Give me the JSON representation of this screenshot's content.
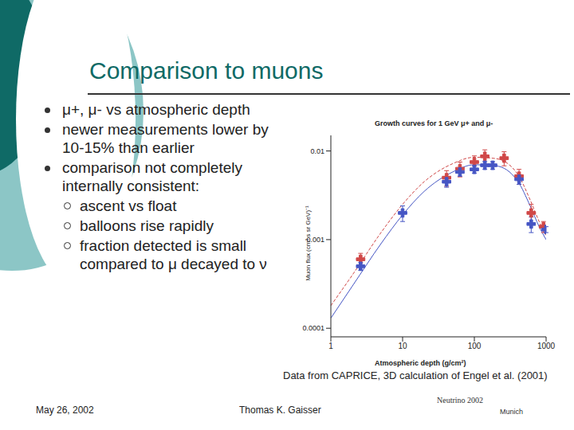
{
  "title": "Comparison to muons",
  "bullets": [
    {
      "text": "μ+, μ- vs atmospheric depth",
      "sub": []
    },
    {
      "text": "newer measurements lower by 10-15% than earlier",
      "sub": []
    },
    {
      "text": "comparison not completely internally consistent:",
      "sub": [
        "ascent vs float",
        "balloons rise rapidly",
        "fraction detected is small compared to μ decayed to ν"
      ]
    }
  ],
  "footer": {
    "date": "May 26, 2002",
    "author": "Thomas K. Gaisser",
    "logo": [
      "Neutrino 2002",
      "Munich"
    ]
  },
  "chart_data": {
    "type": "scatter",
    "title": "Growth curves for 1 GeV μ+ and μ-",
    "x_label": "Atmospheric depth (g/cm²)",
    "y_label": "Muon flux (cm² s sr GeV)⁻¹",
    "caption": "Data from CAPRICE, 3D calculation of Engel et al. (2001)",
    "log": true,
    "grid": false,
    "xlim": [
      1,
      1000
    ],
    "xticks": [
      1,
      10,
      100,
      1000
    ],
    "ylim": [
      8e-05,
      0.015
    ],
    "yticks": [
      0.0001,
      0.001,
      0.01
    ],
    "series": [
      {
        "type": "line",
        "color": "#d04848",
        "line_style": "dashed",
        "x": [
          1,
          2,
          5,
          10,
          20,
          50,
          100,
          200,
          400,
          600,
          800,
          1000
        ],
        "values": [
          0.00018,
          0.0004,
          0.0012,
          0.0025,
          0.0045,
          0.0072,
          0.0085,
          0.0082,
          0.0055,
          0.0028,
          0.0016,
          0.0011
        ]
      },
      {
        "type": "line",
        "color": "#4656c4",
        "line_style": "solid",
        "x": [
          1,
          2,
          5,
          10,
          20,
          50,
          100,
          200,
          400,
          600,
          800,
          1000
        ],
        "values": [
          0.00013,
          0.0003,
          0.0009,
          0.0019,
          0.0035,
          0.0058,
          0.007,
          0.0068,
          0.0046,
          0.0024,
          0.0014,
          0.001
        ]
      },
      {
        "type": "scatter",
        "color": "#d04848",
        "marker": "cross",
        "x": [
          2.6,
          41,
          63,
          100,
          140,
          260,
          420,
          620,
          920
        ],
        "values": [
          0.0006,
          0.005,
          0.0063,
          0.0075,
          0.0087,
          0.0083,
          0.0052,
          0.002,
          0.0014
        ],
        "errors": [
          0.0001,
          0.001,
          0.0012,
          0.0013,
          0.0016,
          0.0015,
          0.001,
          0.0005,
          0.0002
        ]
      },
      {
        "type": "scatter",
        "color": "#4656c4",
        "marker": "cross",
        "x": [
          2.6,
          10,
          41,
          63,
          100,
          140,
          180,
          420,
          620,
          1000
        ],
        "values": [
          0.0005,
          0.002,
          0.0045,
          0.0058,
          0.0062,
          0.0069,
          0.0069,
          0.0048,
          0.0015,
          0.0013
        ],
        "errors": [
          5e-05,
          0.0004,
          0.0006,
          0.0006,
          0.0006,
          0.0007,
          0.0007,
          0.0006,
          0.0003,
          0.0001
        ]
      }
    ]
  }
}
